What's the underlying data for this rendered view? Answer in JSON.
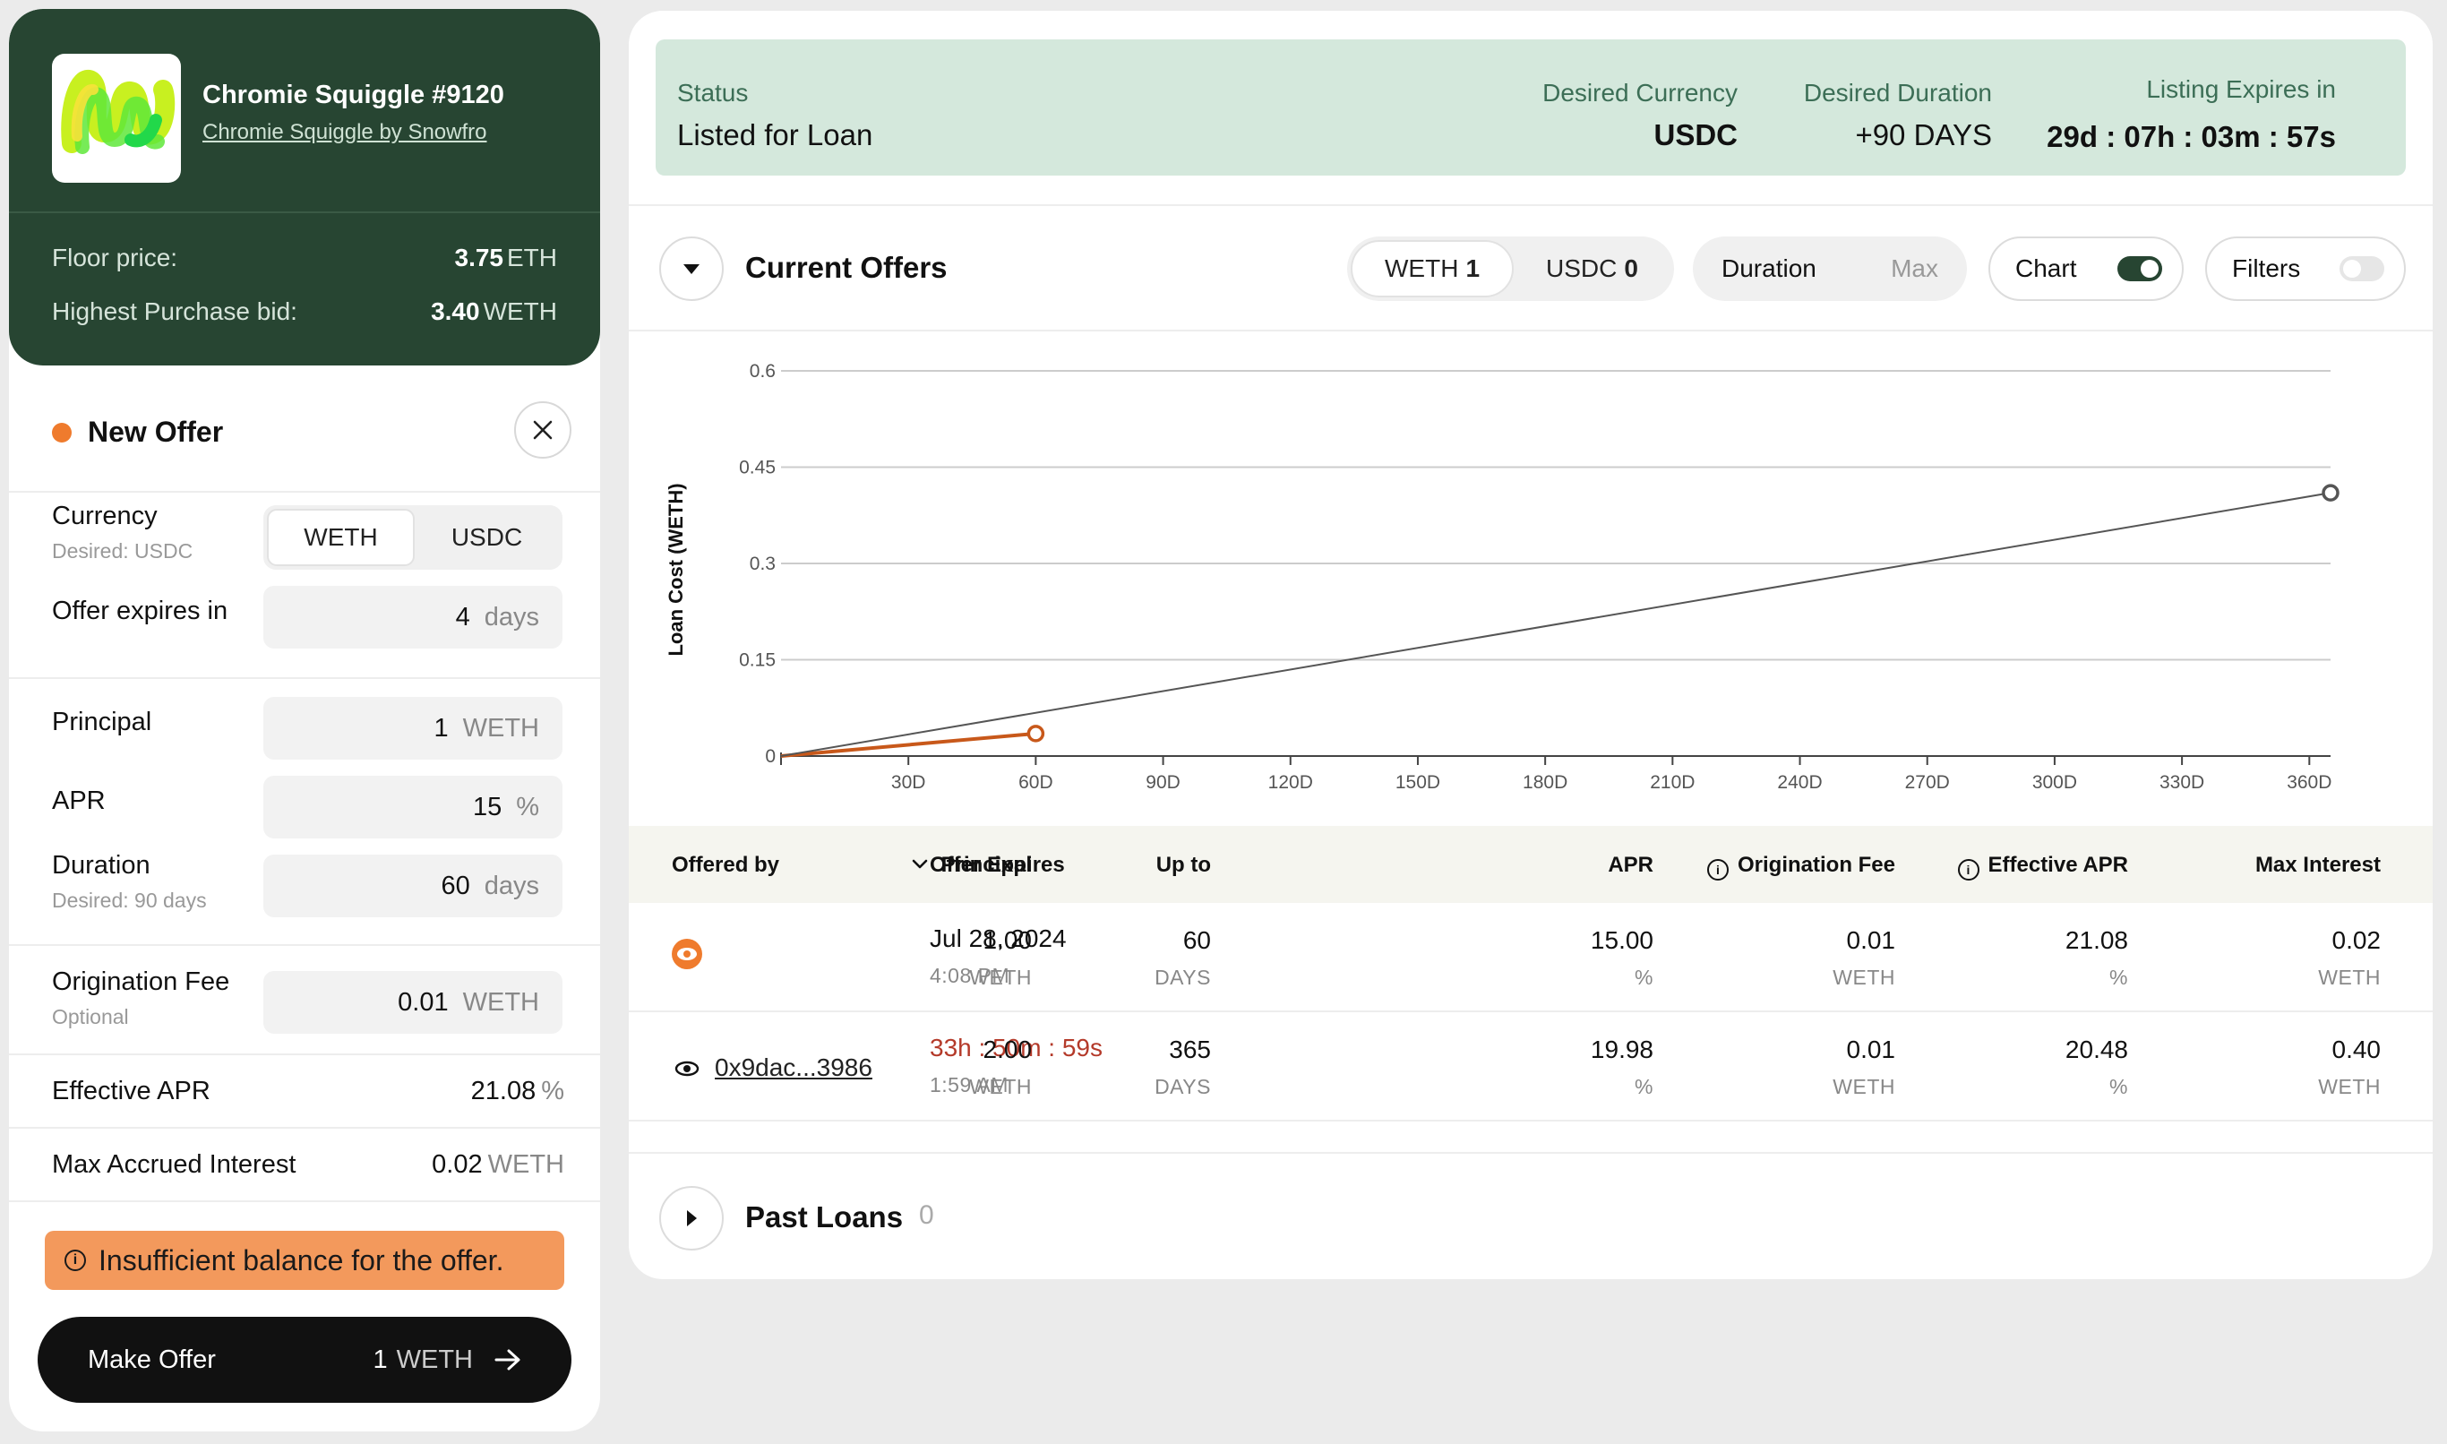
{
  "nft": {
    "title": "Chromie Squiggle #9120",
    "collection": "Chromie Squiggle by Snowfro",
    "floor_label": "Floor price:",
    "floor_value": "3.75",
    "floor_unit": "ETH",
    "bid_label": "Highest Purchase bid:",
    "bid_value": "3.40",
    "bid_unit": "WETH"
  },
  "new_offer": {
    "title": "New Offer",
    "currency_label": "Currency",
    "currency_sub": "Desired: USDC",
    "currency_options": [
      "WETH",
      "USDC"
    ],
    "expires_label": "Offer expires in",
    "expires_value": "4",
    "expires_unit": "days",
    "principal_label": "Principal",
    "principal_value": "1",
    "principal_unit": "WETH",
    "apr_label": "APR",
    "apr_value": "15",
    "apr_unit": "%",
    "duration_label": "Duration",
    "duration_sub": "Desired: 90 days",
    "duration_value": "60",
    "duration_unit": "days",
    "fee_label": "Origination Fee",
    "fee_sub": "Optional",
    "fee_value": "0.01",
    "fee_unit": "WETH",
    "eff_apr_label": "Effective APR",
    "eff_apr_value": "21.08",
    "eff_apr_unit": "%",
    "max_interest_label": "Max Accrued Interest",
    "max_interest_value": "0.02",
    "max_interest_unit": "WETH",
    "warning": "Insufficient balance for the offer.",
    "submit_label": "Make Offer",
    "submit_amount": "1",
    "submit_unit": "WETH"
  },
  "status": {
    "status_label": "Status",
    "status_value": "Listed for Loan",
    "currency_label": "Desired Currency",
    "currency_value": "USDC",
    "duration_label": "Desired Duration",
    "duration_value": "+90 DAYS",
    "expires_label": "Listing Expires in",
    "expires_value": "29d : 07h : 03m : 57s"
  },
  "offers": {
    "title": "Current Offers",
    "weth_label": "WETH",
    "weth_count": "1",
    "usdc_label": "USDC",
    "usdc_count": "0",
    "duration_label": "Duration",
    "max_label": "Max",
    "chart_label": "Chart",
    "filters_label": "Filters",
    "columns": [
      "Offered by",
      "Offer Expires",
      "Principal",
      "Up to",
      "APR",
      "Origination Fee",
      "Effective APR",
      "Max Interest"
    ],
    "rows": [
      {
        "offered_by": "",
        "expires_main": "Jul 28, 2024",
        "expires_sub": "4:08 PM",
        "principal": "1.00",
        "principal_unit": "WETH",
        "upto": "60",
        "upto_unit": "DAYS",
        "apr": "15.00",
        "apr_unit": "%",
        "fee": "0.01",
        "fee_unit": "WETH",
        "eff_apr": "21.08",
        "eff_apr_unit": "%",
        "max_interest": "0.02",
        "max_interest_unit": "WETH"
      },
      {
        "offered_by": "0x9dac...3986",
        "expires_main": "33h : 50m : 59s",
        "expires_sub": "1:59 AM",
        "principal": "2.00",
        "principal_unit": "WETH",
        "upto": "365",
        "upto_unit": "DAYS",
        "apr": "19.98",
        "apr_unit": "%",
        "fee": "0.01",
        "fee_unit": "WETH",
        "eff_apr": "20.48",
        "eff_apr_unit": "%",
        "max_interest": "0.40",
        "max_interest_unit": "WETH"
      }
    ]
  },
  "past_loans": {
    "title": "Past Loans",
    "count": "0"
  },
  "colors": {
    "dark_green": "#274532",
    "status_bg": "#d4e8dc",
    "orange": "#ef7b2d",
    "line_orange": "#c8581a",
    "warning_bg": "#f3995c"
  },
  "chart_data": {
    "type": "line",
    "ylabel": "Loan Cost (WETH)",
    "xlabel": "",
    "x_ticks": [
      "30D",
      "60D",
      "90D",
      "120D",
      "150D",
      "180D",
      "210D",
      "240D",
      "270D",
      "300D",
      "330D",
      "360D"
    ],
    "y_ticks": [
      "0",
      "0.15",
      "0.3",
      "0.45",
      "0.6"
    ],
    "xlim": [
      0,
      365
    ],
    "ylim": [
      0,
      0.6
    ],
    "grid": true,
    "series": [
      {
        "color": "#c8581a",
        "points": [
          [
            0,
            0
          ],
          [
            60,
            0.035
          ]
        ]
      },
      {
        "color": "#555555",
        "points": [
          [
            0,
            0
          ],
          [
            365,
            0.41
          ]
        ]
      }
    ]
  }
}
